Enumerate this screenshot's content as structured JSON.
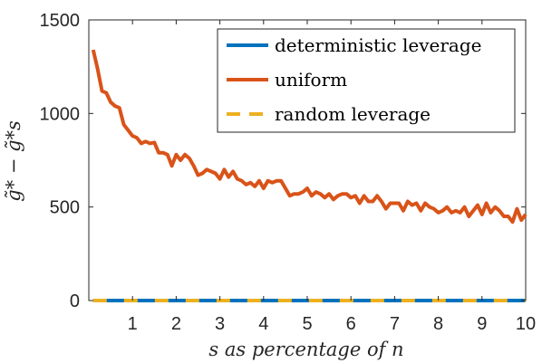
{
  "chart_data": {
    "type": "line",
    "xlabel": "s as percentage of n",
    "ylabel": "g̃* − g̃*s",
    "xlim": [
      0,
      10
    ],
    "ylim": [
      0,
      1500
    ],
    "xticks": [
      "1",
      "2",
      "3",
      "4",
      "5",
      "6",
      "7",
      "8",
      "9",
      "10"
    ],
    "yticks": [
      "0",
      "500",
      "1000",
      "1500"
    ],
    "legend_position": "top-right",
    "grid": false,
    "series": [
      {
        "name": "deterministic leverage",
        "color": "#0072BD",
        "style": "solid",
        "x": [
          0.1,
          10
        ],
        "y": [
          0,
          0
        ]
      },
      {
        "name": "uniform",
        "color": "#D95319",
        "style": "solid",
        "x": [
          0.1,
          0.2,
          0.3,
          0.4,
          0.5,
          0.6,
          0.7,
          0.8,
          0.9,
          1.0,
          1.1,
          1.2,
          1.3,
          1.4,
          1.5,
          1.6,
          1.7,
          1.8,
          1.9,
          2.0,
          2.1,
          2.2,
          2.3,
          2.4,
          2.5,
          2.6,
          2.7,
          2.8,
          2.9,
          3.0,
          3.1,
          3.2,
          3.3,
          3.4,
          3.5,
          3.6,
          3.7,
          3.8,
          3.9,
          4.0,
          4.1,
          4.2,
          4.3,
          4.4,
          4.5,
          4.6,
          4.7,
          4.8,
          4.9,
          5.0,
          5.1,
          5.2,
          5.3,
          5.4,
          5.5,
          5.6,
          5.7,
          5.8,
          5.9,
          6.0,
          6.1,
          6.2,
          6.3,
          6.4,
          6.5,
          6.6,
          6.7,
          6.8,
          6.9,
          7.0,
          7.1,
          7.2,
          7.3,
          7.4,
          7.5,
          7.6,
          7.7,
          7.8,
          7.9,
          8.0,
          8.1,
          8.2,
          8.3,
          8.4,
          8.5,
          8.6,
          8.7,
          8.8,
          8.9,
          9.0,
          9.1,
          9.2,
          9.3,
          9.4,
          9.5,
          9.6,
          9.7,
          9.8,
          9.9,
          10.0
        ],
        "y": [
          1340,
          1240,
          1120,
          1110,
          1060,
          1040,
          1030,
          940,
          910,
          880,
          870,
          840,
          850,
          840,
          845,
          790,
          790,
          780,
          720,
          780,
          750,
          780,
          760,
          720,
          670,
          680,
          700,
          690,
          680,
          650,
          700,
          660,
          690,
          650,
          640,
          620,
          630,
          610,
          640,
          600,
          640,
          630,
          640,
          640,
          600,
          560,
          570,
          570,
          580,
          600,
          560,
          580,
          570,
          550,
          570,
          540,
          560,
          570,
          570,
          550,
          560,
          520,
          560,
          530,
          530,
          560,
          530,
          490,
          520,
          520,
          520,
          480,
          530,
          510,
          520,
          480,
          520,
          500,
          490,
          470,
          480,
          500,
          470,
          480,
          470,
          500,
          450,
          480,
          510,
          460,
          520,
          470,
          500,
          480,
          450,
          450,
          420,
          490,
          430,
          460
        ]
      },
      {
        "name": "random leverage",
        "color": "#EDB120",
        "style": "dashed",
        "x": [
          0.1,
          10
        ],
        "y": [
          0,
          0
        ]
      }
    ]
  }
}
